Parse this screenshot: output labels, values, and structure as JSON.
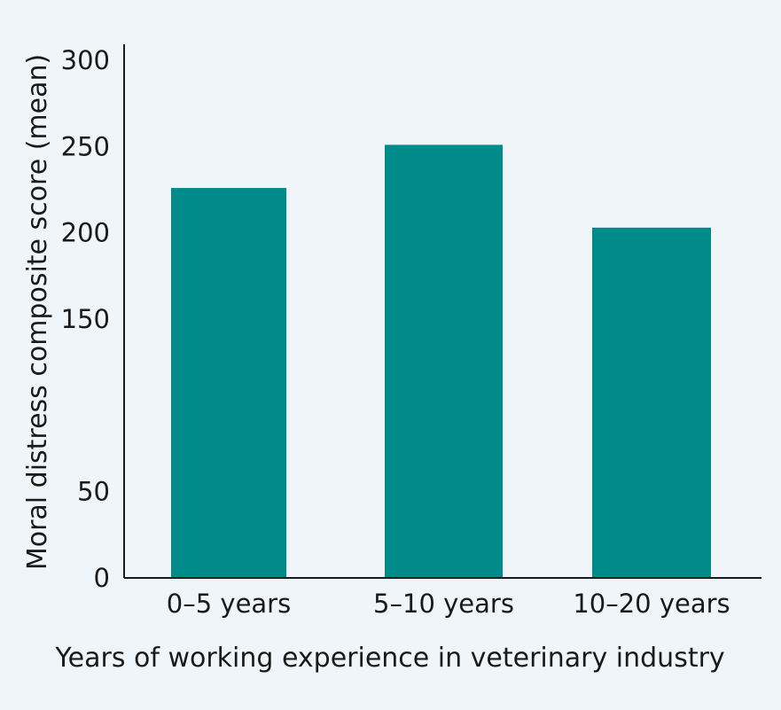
{
  "chart_data": {
    "type": "bar",
    "title": "",
    "xlabel": "Years of working experience in veterinary industry",
    "ylabel": "Moral distress composite score (mean)",
    "categories": [
      "0–5 years",
      "5–10 years",
      "10–20 years"
    ],
    "values": [
      226,
      251,
      203
    ],
    "y_tick_labels": [
      "0",
      "50",
      "150",
      "200",
      "250",
      "300"
    ],
    "ylim": [
      0,
      300
    ],
    "grid": false,
    "legend": "none",
    "colors": {
      "bar": "#008b8b",
      "background": "#eff5f8",
      "axis": "#1a1a1a"
    }
  }
}
